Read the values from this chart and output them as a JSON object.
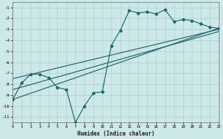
{
  "xlabel": "Humidex (Indice chaleur)",
  "background_color": "#cce8e8",
  "grid_color": "#aacccc",
  "line_color": "#1a6b6b",
  "x_data": [
    0,
    1,
    2,
    3,
    4,
    5,
    6,
    7,
    8,
    9,
    10,
    11,
    12,
    13,
    14,
    15,
    16,
    17,
    18,
    19,
    20,
    21,
    22,
    23
  ],
  "y_main": [
    -9.4,
    -7.9,
    -7.1,
    -7.1,
    -7.4,
    -8.3,
    -8.5,
    -11.5,
    -10.0,
    -8.8,
    -8.7,
    -4.5,
    -3.1,
    -1.3,
    -1.5,
    -1.4,
    -1.6,
    -1.2,
    -2.3,
    -2.1,
    -2.2,
    -2.5,
    -2.8,
    -2.9
  ],
  "line1_x": [
    0,
    23
  ],
  "line1_y": [
    -9.4,
    -2.9
  ],
  "line2_x": [
    0,
    23
  ],
  "line2_y": [
    -8.5,
    -3.2
  ],
  "line3_x": [
    0,
    23
  ],
  "line3_y": [
    -7.5,
    -3.0
  ],
  "xlim": [
    0,
    23
  ],
  "ylim": [
    -11.5,
    -0.5
  ],
  "yticks": [
    -11,
    -10,
    -9,
    -8,
    -7,
    -6,
    -5,
    -4,
    -3,
    -2,
    -1
  ],
  "xticks": [
    0,
    1,
    2,
    3,
    4,
    5,
    6,
    7,
    8,
    9,
    10,
    11,
    12,
    13,
    14,
    15,
    16,
    17,
    18,
    19,
    20,
    21,
    22,
    23
  ]
}
